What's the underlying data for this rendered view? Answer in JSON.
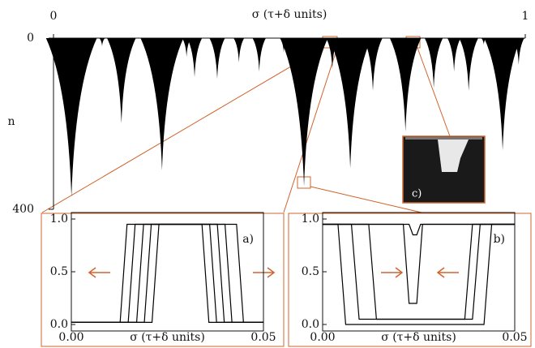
{
  "chart_data": [
    {
      "type": "spike",
      "x_label": "σ (τ+δ units)",
      "y_label": "n",
      "y_axis_inverted": true,
      "color": "#000000",
      "xlim": [
        0,
        1
      ],
      "xticks": [
        0,
        1
      ],
      "ylim": [
        0,
        400
      ],
      "yticks": [
        0,
        400
      ],
      "x": [
        0.038,
        0.103,
        0.144,
        0.23,
        0.282,
        0.299,
        0.347,
        0.393,
        0.436,
        0.488,
        0.531,
        0.591,
        0.629,
        0.677,
        0.746,
        0.806,
        0.849,
        0.88,
        0.912,
        0.952,
        0.986
      ],
      "values": [
        371,
        19,
        199,
        309,
        44,
        91,
        95,
        57,
        78,
        34,
        346,
        72,
        304,
        123,
        218,
        116,
        78,
        123,
        15,
        262,
        62
      ]
    },
    {
      "type": "line",
      "panel_label": "a)",
      "x_label": "σ (τ+δ units)",
      "xlim": [
        0,
        0.05
      ],
      "xticks": [
        {
          "value": 0,
          "label": "0.00"
        },
        {
          "value": 0.05,
          "label": "0.05"
        }
      ],
      "ylim": [
        0,
        1
      ],
      "yticks": [
        {
          "value": 0,
          "label": "0.0"
        },
        {
          "value": 0.5,
          "label": "0.5"
        },
        {
          "value": 1,
          "label": "1.0"
        }
      ],
      "series": [
        {
          "color": "#000000",
          "x": [
            0,
            0.0127,
            0.0145,
            0.034,
            0.0358,
            0.05
          ],
          "values": [
            0.02,
            0.02,
            0.95,
            0.95,
            0.02,
            0.02
          ]
        },
        {
          "color": "#000000",
          "x": [
            0,
            0.0148,
            0.0166,
            0.036,
            0.0378,
            0.05
          ],
          "values": [
            0.02,
            0.02,
            0.95,
            0.95,
            0.02,
            0.02
          ]
        },
        {
          "color": "#000000",
          "x": [
            0,
            0.017,
            0.0188,
            0.038,
            0.0398,
            0.05
          ],
          "values": [
            0.02,
            0.02,
            0.95,
            0.95,
            0.02,
            0.02
          ]
        },
        {
          "color": "#000000",
          "x": [
            0,
            0.019,
            0.0208,
            0.04,
            0.0418,
            0.05
          ],
          "values": [
            0.02,
            0.02,
            0.95,
            0.95,
            0.02,
            0.02
          ]
        },
        {
          "color": "#000000",
          "x": [
            0,
            0.021,
            0.0228,
            0.043,
            0.0448,
            0.05
          ],
          "values": [
            0.02,
            0.02,
            0.95,
            0.95,
            0.02,
            0.02
          ]
        }
      ]
    },
    {
      "type": "line",
      "panel_label": "b)",
      "x_label": "σ (τ+δ units)",
      "xlim": [
        0,
        0.05
      ],
      "xticks": [
        {
          "value": 0,
          "label": "0.00"
        },
        {
          "value": 0.05,
          "label": "0.05"
        }
      ],
      "ylim": [
        0,
        1
      ],
      "yticks": [
        {
          "value": 0,
          "label": "0.0"
        },
        {
          "value": 0.5,
          "label": "0.5"
        },
        {
          "value": 1,
          "label": "1.0"
        }
      ],
      "series": [
        {
          "color": "#000000",
          "x": [
            0,
            0.004,
            0.006,
            0.042,
            0.044,
            0.05
          ],
          "values": [
            0.95,
            0.95,
            0.0,
            0.0,
            0.95,
            0.95
          ]
        },
        {
          "color": "#000000",
          "x": [
            0,
            0.0075,
            0.0095,
            0.039,
            0.041,
            0.05
          ],
          "values": [
            0.95,
            0.95,
            0.05,
            0.05,
            0.95,
            0.95
          ]
        },
        {
          "color": "#000000",
          "x": [
            0,
            0.012,
            0.014,
            0.037,
            0.039,
            0.05
          ],
          "values": [
            0.95,
            0.95,
            0.05,
            0.05,
            0.95,
            0.95
          ]
        },
        {
          "color": "#000000",
          "x": [
            0,
            0.021,
            0.0225,
            0.0245,
            0.026,
            0.05
          ],
          "values": [
            0.95,
            0.95,
            0.2,
            0.2,
            0.95,
            0.95
          ]
        },
        {
          "color": "#000000",
          "x": [
            0,
            0.0225,
            0.0235,
            0.0245,
            0.0255,
            0.05
          ],
          "values": [
            0.95,
            0.95,
            0.85,
            0.85,
            0.95,
            0.95
          ]
        }
      ]
    }
  ],
  "inset_c": {
    "label": "c)"
  }
}
